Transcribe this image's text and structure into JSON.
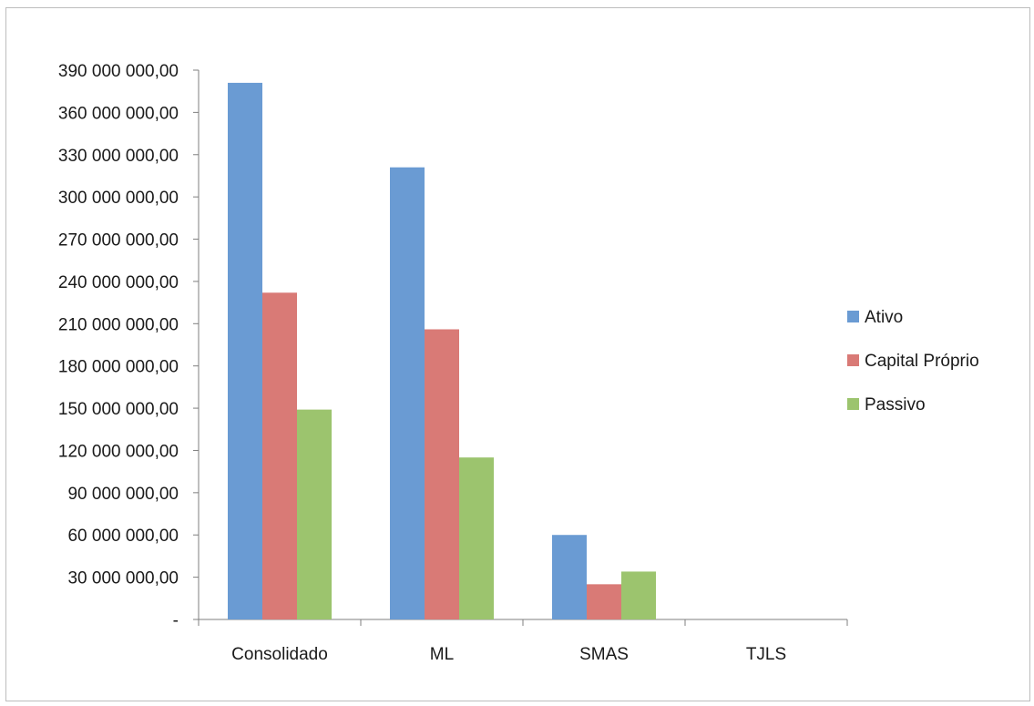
{
  "chart_data": {
    "type": "bar",
    "categories": [
      "Consolidado",
      "ML",
      "SMAS",
      "TJLS"
    ],
    "series": [
      {
        "name": "Ativo",
        "color": "#6a9bd3",
        "values": [
          381000000,
          321000000,
          60000000,
          0
        ]
      },
      {
        "name": "Capital Próprio",
        "color": "#d97a76",
        "values": [
          232000000,
          206000000,
          25000000,
          0
        ]
      },
      {
        "name": "Passivo",
        "color": "#9cc46e",
        "values": [
          149000000,
          115000000,
          34000000,
          0
        ]
      }
    ],
    "yticks": [
      {
        "value": 0,
        "label": "-"
      },
      {
        "value": 30000000,
        "label": "30 000 000,00"
      },
      {
        "value": 60000000,
        "label": "60 000 000,00"
      },
      {
        "value": 90000000,
        "label": "90 000 000,00"
      },
      {
        "value": 120000000,
        "label": "120 000 000,00"
      },
      {
        "value": 150000000,
        "label": "150 000 000,00"
      },
      {
        "value": 180000000,
        "label": "180 000 000,00"
      },
      {
        "value": 210000000,
        "label": "210 000 000,00"
      },
      {
        "value": 240000000,
        "label": "240 000 000,00"
      },
      {
        "value": 270000000,
        "label": "270 000 000,00"
      },
      {
        "value": 300000000,
        "label": "300 000 000,00"
      },
      {
        "value": 330000000,
        "label": "330 000 000,00"
      },
      {
        "value": 360000000,
        "label": "360 000 000,00"
      },
      {
        "value": 390000000,
        "label": "390 000 000,00"
      }
    ],
    "ylim": [
      0,
      390000000
    ],
    "grid": false,
    "legend_position": "right",
    "title": "",
    "xlabel": "",
    "ylabel": ""
  }
}
